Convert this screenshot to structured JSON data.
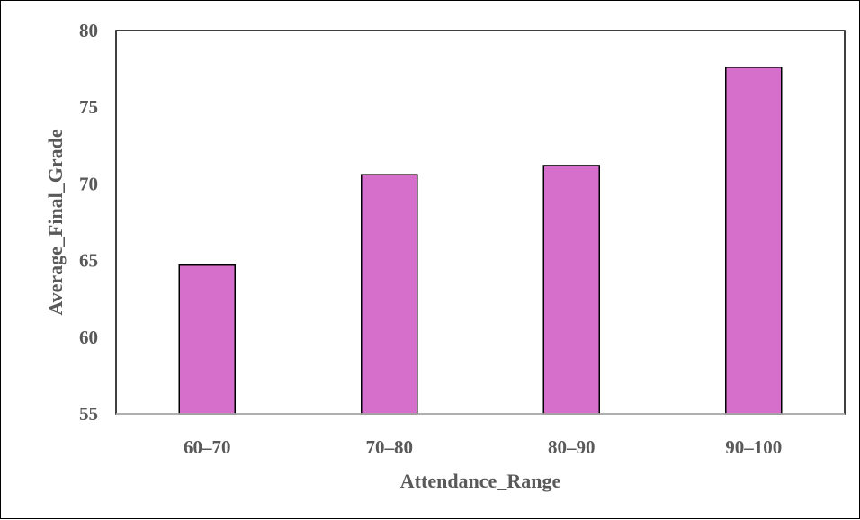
{
  "chart_data": {
    "type": "bar",
    "title": "",
    "xlabel": "Attendance_Range",
    "ylabel": "Average_Final_Grade",
    "categories": [
      "60–70",
      "70–80",
      "80–90",
      "90–100"
    ],
    "values": [
      64.7,
      70.6,
      71.2,
      77.6
    ],
    "ylim": [
      55,
      80
    ],
    "yticks": [
      55,
      60,
      65,
      70,
      75,
      80
    ],
    "grid": false,
    "legend": "none",
    "colors": {
      "bar_fill": "#d56fcb",
      "bar_stroke": "#000000",
      "axis_text": "#595959",
      "axis_line": "#bfbfbf",
      "plot_border": "#000000"
    }
  }
}
